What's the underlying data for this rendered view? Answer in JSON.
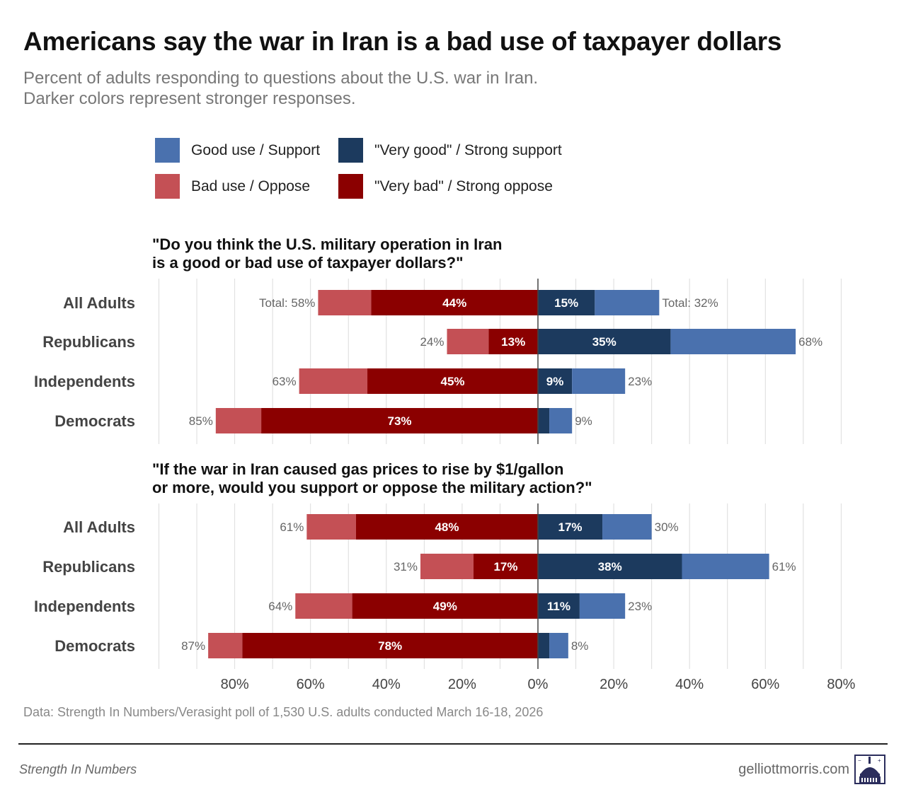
{
  "title": "Americans say the war in Iran is a bad use of taxpayer dollars",
  "subtitle_line1": "Percent of adults responding to questions about the U.S. war in Iran.",
  "subtitle_line2": "Darker colors represent stronger responses.",
  "legend": [
    {
      "label": "Good use / Support",
      "color": "#4a71ae"
    },
    {
      "label": "\"Very good\" / Strong support",
      "color": "#1c3a5e"
    },
    {
      "label": "Bad use / Oppose",
      "color": "#c45055"
    },
    {
      "label": "\"Very bad\" / Strong oppose",
      "color": "#8b0000"
    }
  ],
  "caption": "Data: Strength In Numbers/Verasight poll of 1,530 U.S. adults conducted March 16-18, 2026",
  "footer": {
    "left": "Strength In Numbers",
    "right": "gelliottmorris.com",
    "logo_icon": "capitol-building-icon"
  },
  "chart_data": {
    "type": "bar",
    "orientation": "horizontal-diverging",
    "xlim": [
      -80,
      80
    ],
    "x_ticks": [
      "80%",
      "60%",
      "40%",
      "20%",
      "0%",
      "20%",
      "40%",
      "60%",
      "80%"
    ],
    "x_tick_values": [
      -80,
      -60,
      -40,
      -20,
      0,
      20,
      40,
      60,
      80
    ],
    "grid": true,
    "legend_position": "top",
    "colors": {
      "oppose": "#c45055",
      "strong_oppose": "#8b0000",
      "support": "#4a71ae",
      "strong_support": "#1c3a5e"
    },
    "panels": [
      {
        "question_line1": "\"Do you think the U.S. military operation in Iran",
        "question_line2": "is a good or bad use of taxpayer dollars?\"",
        "categories": [
          "All Adults",
          "Republicans",
          "Independents",
          "Democrats"
        ],
        "total_oppose": [
          58,
          24,
          63,
          85
        ],
        "strong_oppose": [
          44,
          13,
          45,
          73
        ],
        "total_support": [
          32,
          68,
          23,
          9
        ],
        "strong_support": [
          15,
          35,
          9,
          3
        ],
        "oppose_total_labels": [
          "Total: 58%",
          "24%",
          "63%",
          "85%"
        ],
        "support_total_labels": [
          "Total: 32%",
          "68%",
          "23%",
          "9%"
        ],
        "strong_oppose_labels": [
          "44%",
          "13%",
          "45%",
          "73%"
        ],
        "strong_support_labels": [
          "15%",
          "35%",
          "9%",
          ""
        ]
      },
      {
        "question_line1": "\"If the war in Iran caused gas prices to rise by $1/gallon",
        "question_line2": "or more, would you support or oppose the military action?\"",
        "categories": [
          "All Adults",
          "Republicans",
          "Independents",
          "Democrats"
        ],
        "total_oppose": [
          61,
          31,
          64,
          87
        ],
        "strong_oppose": [
          48,
          17,
          49,
          78
        ],
        "total_support": [
          30,
          61,
          23,
          8
        ],
        "strong_support": [
          17,
          38,
          11,
          3
        ],
        "oppose_total_labels": [
          "61%",
          "31%",
          "64%",
          "87%"
        ],
        "support_total_labels": [
          "30%",
          "61%",
          "23%",
          "8%"
        ],
        "strong_oppose_labels": [
          "48%",
          "17%",
          "49%",
          "78%"
        ],
        "strong_support_labels": [
          "17%",
          "38%",
          "11%",
          ""
        ]
      }
    ]
  }
}
